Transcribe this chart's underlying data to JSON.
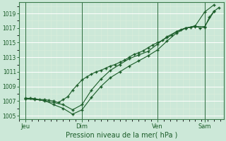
{
  "title": "",
  "xlabel": "Pression niveau de la mer( hPa )",
  "ylabel": "",
  "background_color": "#cce8d8",
  "plot_bg_color": "#cce8d8",
  "grid_color": "#b0d8c0",
  "line_color": "#1a5c28",
  "ylim": [
    1004.5,
    1020.5
  ],
  "yticks": [
    1005,
    1007,
    1009,
    1011,
    1013,
    1015,
    1017,
    1019
  ],
  "day_labels": [
    "Jeu",
    "Dim",
    "Ven",
    "Sam"
  ],
  "day_positions": [
    0,
    36,
    84,
    114
  ],
  "xlim": [
    -4,
    126
  ],
  "line1_x": [
    0,
    3,
    6,
    9,
    12,
    15,
    18,
    21,
    24,
    27,
    30,
    33,
    36,
    39,
    42,
    45,
    48,
    51,
    54,
    57,
    60,
    63,
    66,
    69,
    72,
    75,
    78,
    81,
    84,
    87,
    90,
    93,
    96,
    99,
    102,
    105,
    108,
    111,
    114,
    117,
    120,
    123
  ],
  "line1_y": [
    1007.3,
    1007.4,
    1007.3,
    1007.2,
    1007.2,
    1007.1,
    1007.0,
    1006.8,
    1007.2,
    1007.6,
    1008.5,
    1009.2,
    1009.9,
    1010.3,
    1010.7,
    1011.0,
    1011.2,
    1011.5,
    1011.8,
    1012.0,
    1012.3,
    1012.6,
    1013.0,
    1013.4,
    1013.6,
    1013.9,
    1014.3,
    1014.7,
    1015.0,
    1015.3,
    1015.7,
    1016.0,
    1016.5,
    1016.8,
    1017.0,
    1017.1,
    1017.3,
    1017.0,
    1017.1,
    1018.5,
    1019.3,
    1019.8
  ],
  "line2_x": [
    0,
    6,
    12,
    18,
    24,
    30,
    36,
    42,
    48,
    54,
    60,
    66,
    72,
    78,
    84,
    90,
    96,
    102,
    108,
    114,
    120
  ],
  "line2_y": [
    1007.3,
    1007.2,
    1007.1,
    1006.5,
    1006.0,
    1005.2,
    1005.8,
    1007.5,
    1009.0,
    1010.2,
    1011.0,
    1011.8,
    1012.5,
    1013.2,
    1014.0,
    1015.2,
    1016.3,
    1017.0,
    1017.2,
    1017.2,
    1019.3
  ],
  "line3_x": [
    0,
    6,
    12,
    18,
    24,
    30,
    36,
    42,
    48,
    54,
    60,
    66,
    72,
    78,
    84,
    90,
    96,
    102,
    108,
    114,
    120
  ],
  "line3_y": [
    1007.4,
    1007.3,
    1007.0,
    1006.8,
    1006.5,
    1005.8,
    1006.5,
    1008.5,
    1010.0,
    1011.2,
    1012.0,
    1012.8,
    1013.3,
    1013.8,
    1014.8,
    1015.8,
    1016.5,
    1017.0,
    1017.3,
    1019.2,
    1020.2
  ]
}
